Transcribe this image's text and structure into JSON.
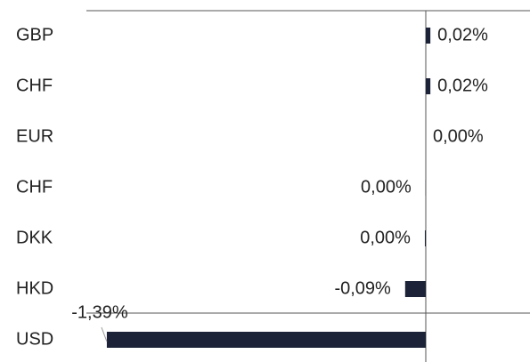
{
  "chart_data": {
    "type": "bar",
    "orientation": "horizontal",
    "categories": [
      "GBP",
      "CHF",
      "EUR",
      "CHF",
      "DKK",
      "HKD",
      "USD"
    ],
    "values": [
      0.02,
      0.02,
      0.0,
      -0.001,
      -0.004,
      -0.09,
      -1.39
    ],
    "value_labels": [
      "0,02%",
      "0,02%",
      "0,00%",
      "0,00%",
      "0,00%",
      "-0,09%",
      "-1,39%"
    ],
    "color": "#1c2237"
  }
}
